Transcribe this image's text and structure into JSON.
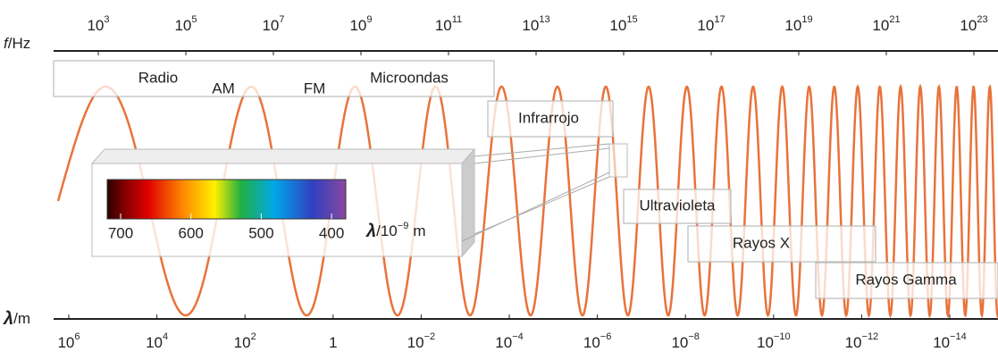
{
  "frequency_axis": {
    "symbol": "f",
    "unit": "/Hz",
    "ticks": [
      {
        "base": "10",
        "exp": "3"
      },
      {
        "base": "10",
        "exp": "5"
      },
      {
        "base": "10",
        "exp": "7"
      },
      {
        "base": "10",
        "exp": "9"
      },
      {
        "base": "10",
        "exp": "11"
      },
      {
        "base": "10",
        "exp": "13"
      },
      {
        "base": "10",
        "exp": "15"
      },
      {
        "base": "10",
        "exp": "17"
      },
      {
        "base": "10",
        "exp": "19"
      },
      {
        "base": "10",
        "exp": "21"
      },
      {
        "base": "10",
        "exp": "23"
      }
    ]
  },
  "wavelength_axis": {
    "symbol": "λ",
    "unit": "/m",
    "ticks": [
      {
        "base": "10",
        "exp": "6"
      },
      {
        "base": "10",
        "exp": "4"
      },
      {
        "base": "10",
        "exp": "2"
      },
      {
        "base": "1"
      },
      {
        "base": "10",
        "exp": "−2"
      },
      {
        "base": "10",
        "exp": "−4"
      },
      {
        "base": "10",
        "exp": "−6"
      },
      {
        "base": "10",
        "exp": "−8"
      },
      {
        "base": "10",
        "exp": "−10"
      },
      {
        "base": "10",
        "exp": "−12"
      },
      {
        "base": "10",
        "exp": "−14"
      }
    ]
  },
  "regions": {
    "radio": "Radio",
    "am": "AM",
    "fm": "FM",
    "microwave": "Microondas",
    "infrared": "Infrarrojo",
    "ultraviolet": "Ultravioleta",
    "xray": "Rayos X",
    "gamma": "Rayos Gamma"
  },
  "visible": {
    "ticks": [
      "700",
      "600",
      "500",
      "400"
    ],
    "symbol": "λ",
    "unit_base": "/10",
    "unit_exp": "−9",
    "unit_suffix": "m"
  }
}
